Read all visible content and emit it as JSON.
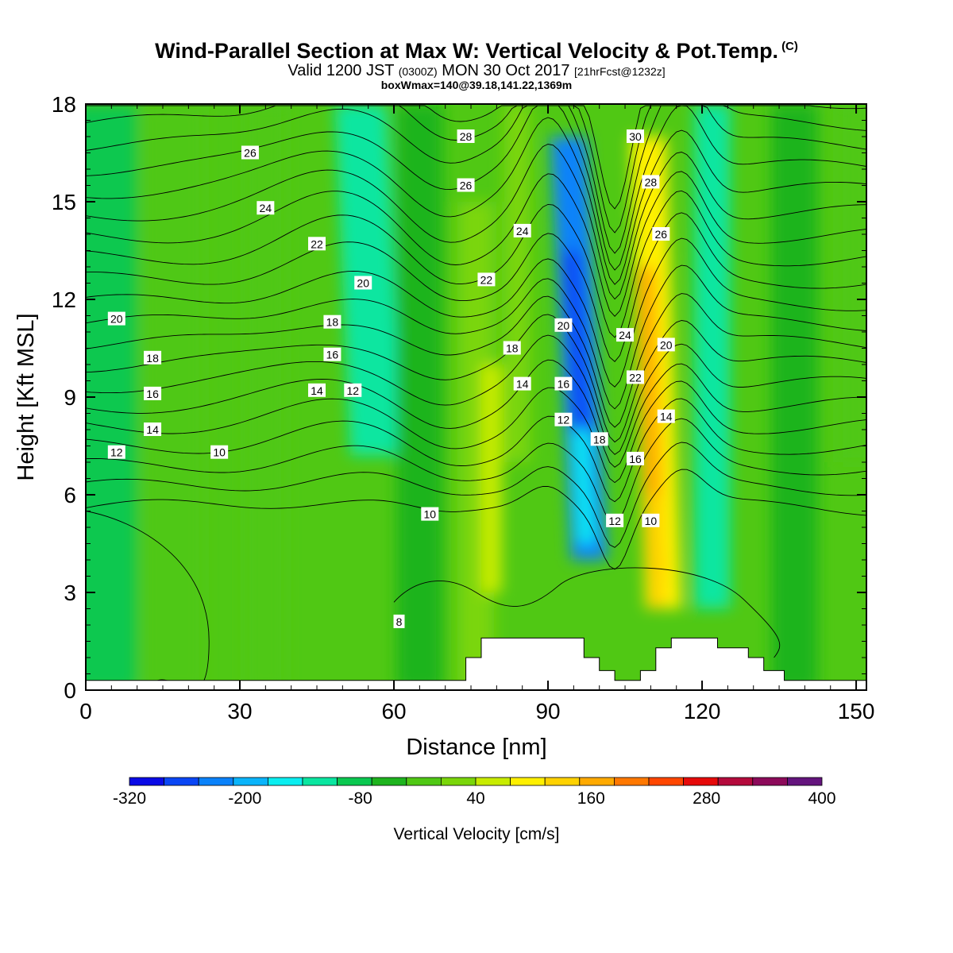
{
  "header": {
    "title": "Wind-Parallel Section at Max W: Vertical Velocity & Pot.Temp.",
    "copyright": "(C)",
    "valid_prefix": "Valid 1200 JST",
    "valid_utc": "(0300Z)",
    "valid_date": "MON 30 Oct 2017",
    "forecast": "[21hrFcst@1232z]",
    "boxmax": "boxWmax=140@39.18,141.22,1369m"
  },
  "chart_data": {
    "type": "heatmap",
    "title": "Wind-Parallel Section at Max W: Vertical Velocity & Pot.Temp.",
    "xlabel": "Distance [nm]",
    "ylabel": "Height [Kft MSL]",
    "xlim": [
      0,
      152
    ],
    "ylim": [
      0,
      18
    ],
    "x_ticks": [
      "0",
      "30",
      "60",
      "90",
      "120",
      "150"
    ],
    "y_ticks": [
      "0",
      "3",
      "6",
      "9",
      "12",
      "15",
      "18"
    ],
    "colorbar": {
      "label": "Vertical Velocity [cm/s]",
      "tick_labels": [
        "-320",
        "-200",
        "-80",
        "40",
        "160",
        "280",
        "400"
      ],
      "min": -320,
      "max": 400,
      "step": 40,
      "colors": [
        "#0a0ae6",
        "#0a46f5",
        "#0a82fa",
        "#0ab4fa",
        "#0aeef0",
        "#0ae6a0",
        "#0ac850",
        "#1eb41e",
        "#50c814",
        "#7ad60a",
        "#c8ec00",
        "#fff000",
        "#ffd200",
        "#ffaa00",
        "#ff7800",
        "#ff4600",
        "#e60a0a",
        "#b40a3c",
        "#8c0a5a",
        "#64147d"
      ]
    },
    "velocity_field": [
      {
        "x": 3,
        "y0": 0,
        "y1": 18,
        "value": -60
      },
      {
        "x": 17,
        "y0": 0,
        "y1": 18,
        "value": 20
      },
      {
        "x": 35,
        "y0": 0,
        "y1": 18,
        "value": 20
      },
      {
        "x": 55,
        "y0": 7.2,
        "y1": 18,
        "value": -100
      },
      {
        "x": 65,
        "y0": 0,
        "y1": 18,
        "value": -40
      },
      {
        "x": 76,
        "y0": 0,
        "y1": 15,
        "value": 60
      },
      {
        "x": 84,
        "y0": 7,
        "y1": 18,
        "value": 40
      },
      {
        "x": 96,
        "y0": 4,
        "y1": 17,
        "value": -220
      },
      {
        "x": 111,
        "y0": 2.5,
        "y1": 17,
        "value": 140
      },
      {
        "x": 122,
        "y0": 2.5,
        "y1": 18,
        "value": -100
      },
      {
        "x": 138,
        "y0": 0,
        "y1": 18,
        "value": -20
      },
      {
        "x": 150,
        "y0": 7,
        "y1": 18,
        "value": 20
      }
    ],
    "theta_contour_labels": [
      "8",
      "10",
      "12",
      "14",
      "16",
      "18",
      "20",
      "22",
      "24",
      "26",
      "28",
      "30"
    ],
    "terrain_kft": [
      {
        "x": 0,
        "h": 0.3
      },
      {
        "x": 74,
        "h": 0.3
      },
      {
        "x": 74,
        "h": 1.0
      },
      {
        "x": 77,
        "h": 1.0
      },
      {
        "x": 77,
        "h": 1.6
      },
      {
        "x": 97,
        "h": 1.6
      },
      {
        "x": 97,
        "h": 1.0
      },
      {
        "x": 100,
        "h": 1.0
      },
      {
        "x": 100,
        "h": 0.6
      },
      {
        "x": 103,
        "h": 0.6
      },
      {
        "x": 103,
        "h": 0.3
      },
      {
        "x": 108,
        "h": 0.3
      },
      {
        "x": 108,
        "h": 0.6
      },
      {
        "x": 111,
        "h": 0.6
      },
      {
        "x": 111,
        "h": 1.3
      },
      {
        "x": 114,
        "h": 1.3
      },
      {
        "x": 114,
        "h": 1.6
      },
      {
        "x": 123,
        "h": 1.6
      },
      {
        "x": 123,
        "h": 1.3
      },
      {
        "x": 129,
        "h": 1.3
      },
      {
        "x": 129,
        "h": 1.0
      },
      {
        "x": 132,
        "h": 1.0
      },
      {
        "x": 132,
        "h": 0.6
      },
      {
        "x": 136,
        "h": 0.6
      },
      {
        "x": 136,
        "h": 0.3
      },
      {
        "x": 152,
        "h": 0.3
      }
    ]
  }
}
